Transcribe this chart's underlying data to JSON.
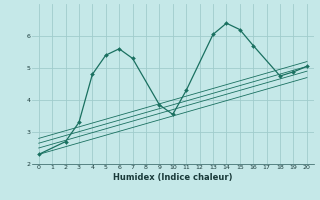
{
  "title": "",
  "xlabel": "Humidex (Indice chaleur)",
  "bg_color": "#c5e8e8",
  "grid_color": "#a0cccc",
  "line_color": "#1a7060",
  "xlim": [
    -0.5,
    20.5
  ],
  "ylim": [
    2.0,
    7.0
  ],
  "xticks": [
    0,
    1,
    2,
    3,
    4,
    5,
    6,
    7,
    8,
    9,
    10,
    11,
    12,
    13,
    14,
    15,
    16,
    17,
    18,
    19,
    20
  ],
  "yticks": [
    2,
    3,
    4,
    5,
    6
  ],
  "curve_x": [
    0,
    2,
    3,
    4,
    5,
    6,
    7,
    9,
    10,
    11,
    13,
    14,
    15,
    16,
    18,
    19,
    20
  ],
  "curve_y": [
    2.3,
    2.7,
    3.3,
    4.8,
    5.4,
    5.6,
    5.3,
    3.85,
    3.55,
    4.3,
    6.05,
    6.4,
    6.2,
    5.7,
    4.75,
    4.88,
    5.05
  ],
  "line1_x": [
    0,
    20
  ],
  "line1_y": [
    2.3,
    4.7
  ],
  "line2_x": [
    0,
    20
  ],
  "line2_y": [
    2.5,
    4.9
  ],
  "line3_x": [
    0,
    20
  ],
  "line3_y": [
    2.65,
    5.05
  ],
  "line4_x": [
    0,
    20
  ],
  "line4_y": [
    2.8,
    5.2
  ]
}
